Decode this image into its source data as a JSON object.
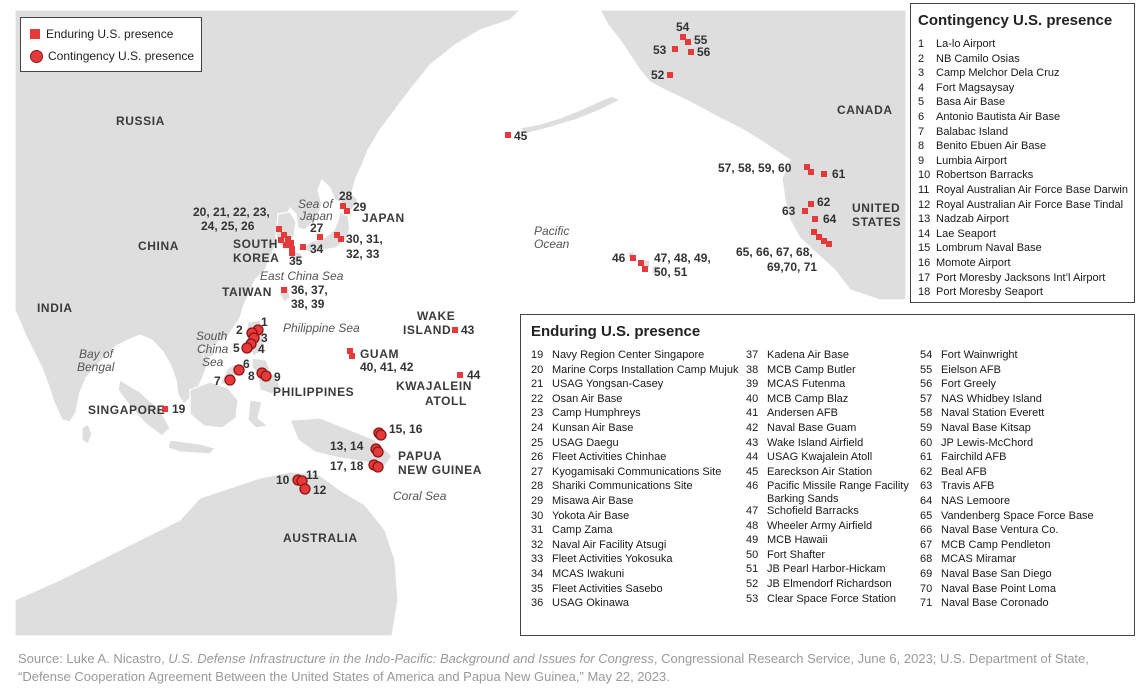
{
  "legend": {
    "enduring_label": "Enduring U.S. presence",
    "contingency_label": "Contingency U.S. presence"
  },
  "colors": {
    "marker_fill": "#e63a3a",
    "marker_stroke": "#8a1515",
    "land": "#dedede",
    "ocean": "#ffffff",
    "border": "#ffffff"
  },
  "regions": {
    "russia": "RUSSIA",
    "china": "CHINA",
    "india": "INDIA",
    "canada": "CANADA",
    "united": "UNITED",
    "states": "STATES",
    "japan": "JAPAN",
    "south": "SOUTH",
    "korea": "KOREA",
    "taiwan": "TAIWAN",
    "philippines": "PHILIPPINES",
    "singapore": "SINGAPORE",
    "australia": "AUSTRALIA",
    "papua": "PAPUA",
    "new_guinea": "NEW GUINEA",
    "wake": "WAKE",
    "island": "ISLAND",
    "guam": "GUAM",
    "kwajalein": "KWAJALEIN",
    "atoll": "ATOLL"
  },
  "water_bodies": {
    "sea_of": "Sea of",
    "japan": "Japan",
    "east_china_sea": "East China Sea",
    "pacific": "Pacific",
    "ocean": "Ocean",
    "philippine_sea": "Philippine Sea",
    "south": "South",
    "china": "China",
    "sea": "Sea",
    "bay_of": "Bay of",
    "bengal": "Bengal",
    "coral_sea": "Coral Sea"
  },
  "map_labels": {
    "n1": "1",
    "n23": "2",
    "n3": "3",
    "n4": "4",
    "n5": "5",
    "n6": "6",
    "n7": "7",
    "n8": "8",
    "n9": "9",
    "n10": "10",
    "n11": "11",
    "n12": "12",
    "n1314": "13, 14",
    "n1516": "15, 16",
    "n1718": "17, 18",
    "n19": "19",
    "k1": "20, 21, 22, 23,",
    "k2": "24, 25, 26",
    "n27": "27",
    "n28": "28",
    "n29": "29",
    "jp1": "30, 31,",
    "jp2": "32, 33",
    "n34": "34",
    "n35": "35",
    "ok1": "36, 37,",
    "ok2": "38, 39",
    "gu": "40, 41, 42",
    "n43": "43",
    "n44": "44",
    "n45": "45",
    "n46": "46",
    "hi1": "47, 48, 49,",
    "hi2": "50, 51",
    "n52": "52",
    "n53": "53",
    "n54": "54",
    "n55": "55",
    "n56": "56",
    "wa": "57, 58, 59, 60",
    "n61": "61",
    "n62": "62",
    "n63": "63",
    "n64": "64",
    "ca1": "65, 66, 67, 68,",
    "ca2": "69,70, 71"
  },
  "contingency": {
    "title": "Contingency U.S. presence",
    "items": [
      {
        "num": "1",
        "name": "La-lo Airport"
      },
      {
        "num": "2",
        "name": "NB Camilo Osias"
      },
      {
        "num": "3",
        "name": "Camp Melchor Dela Cruz"
      },
      {
        "num": "4",
        "name": "Fort Magsaysay"
      },
      {
        "num": "5",
        "name": "Basa Air Base"
      },
      {
        "num": "6",
        "name": "Antonio Bautista Air Base"
      },
      {
        "num": "7",
        "name": "Balabac Island"
      },
      {
        "num": "8",
        "name": "Benito Ebuen Air Base"
      },
      {
        "num": "9",
        "name": "Lumbia Airport"
      },
      {
        "num": "10",
        "name": "Robertson Barracks"
      },
      {
        "num": "11",
        "name": "Royal Australian Air Force Base Darwin"
      },
      {
        "num": "12",
        "name": "Royal Australian Air Force Base Tindal"
      },
      {
        "num": "13",
        "name": "Nadzab Airport"
      },
      {
        "num": "14",
        "name": "Lae Seaport"
      },
      {
        "num": "15",
        "name": "Lombrum Naval Base"
      },
      {
        "num": "16",
        "name": "Momote Airport"
      },
      {
        "num": "17",
        "name": "Port Moresby Jacksons Int’l Airport"
      },
      {
        "num": "18",
        "name": "Port Moresby Seaport"
      }
    ]
  },
  "enduring": {
    "title": "Enduring U.S. presence",
    "col1": [
      {
        "num": "19",
        "name": "Navy Region Center Singapore"
      },
      {
        "num": "20",
        "name": "Marine Corps Installation Camp Mujuk"
      },
      {
        "num": "21",
        "name": "USAG Yongsan-Casey"
      },
      {
        "num": "22",
        "name": "Osan Air Base"
      },
      {
        "num": "23",
        "name": "Camp Humphreys"
      },
      {
        "num": "24",
        "name": "Kunsan Air Base"
      },
      {
        "num": "25",
        "name": "USAG Daegu"
      },
      {
        "num": "26",
        "name": "Fleet Activities Chinhae"
      },
      {
        "num": "27",
        "name": "Kyogamisaki Communications Site"
      },
      {
        "num": "28",
        "name": "Shariki Communications Site"
      },
      {
        "num": "29",
        "name": "Misawa Air Base"
      },
      {
        "num": "30",
        "name": "Yokota Air Base"
      },
      {
        "num": "31",
        "name": "Camp Zama"
      },
      {
        "num": "32",
        "name": "Naval Air Facility Atsugi"
      },
      {
        "num": "33",
        "name": "Fleet Activities Yokosuka"
      },
      {
        "num": "34",
        "name": "MCAS Iwakuni"
      },
      {
        "num": "35",
        "name": "Fleet Activities Sasebo"
      },
      {
        "num": "36",
        "name": "USAG Okinawa"
      }
    ],
    "col2": [
      {
        "num": "37",
        "name": "Kadena Air Base"
      },
      {
        "num": "38",
        "name": "MCB Camp Butler"
      },
      {
        "num": "39",
        "name": "MCAS Futenma"
      },
      {
        "num": "40",
        "name": "MCB Camp Blaz"
      },
      {
        "num": "41",
        "name": "Andersen AFB"
      },
      {
        "num": "42",
        "name": "Naval Base Guam"
      },
      {
        "num": "43",
        "name": "Wake Island Airfield"
      },
      {
        "num": "44",
        "name": "USAG Kwajalein Atoll"
      },
      {
        "num": "45",
        "name": "Eareckson Air Station"
      },
      {
        "num": "46",
        "name": "Pacific Missile Range Facility",
        "name2": "Barking Sands"
      },
      {
        "num": "47",
        "name": "Schofield Barracks"
      },
      {
        "num": "48",
        "name": "Wheeler Army Airfield"
      },
      {
        "num": "49",
        "name": "MCB Hawaii"
      },
      {
        "num": "50",
        "name": "Fort Shafter"
      },
      {
        "num": "51",
        "name": "JB Pearl Harbor-Hickam"
      },
      {
        "num": "52",
        "name": "JB Elmendorf Richardson"
      },
      {
        "num": "53",
        "name": "Clear Space Force Station"
      }
    ],
    "col3": [
      {
        "num": "54",
        "name": "Fort Wainwright"
      },
      {
        "num": "55",
        "name": "Eielson AFB"
      },
      {
        "num": "56",
        "name": "Fort Greely"
      },
      {
        "num": "57",
        "name": "NAS Whidbey Island"
      },
      {
        "num": "58",
        "name": "Naval Station Everett"
      },
      {
        "num": "59",
        "name": "Naval Base Kitsap"
      },
      {
        "num": "60",
        "name": "JP Lewis-McChord"
      },
      {
        "num": "61",
        "name": "Fairchild AFB"
      },
      {
        "num": "62",
        "name": "Beal AFB"
      },
      {
        "num": "63",
        "name": "Travis AFB"
      },
      {
        "num": "64",
        "name": "NAS Lemoore"
      },
      {
        "num": "65",
        "name": "Vandenberg Space Force Base"
      },
      {
        "num": "66",
        "name": "Naval Base Ventura Co."
      },
      {
        "num": "67",
        "name": "MCB Camp Pendleton"
      },
      {
        "num": "68",
        "name": "MCAS Miramar"
      },
      {
        "num": "69",
        "name": "Naval Base San Diego"
      },
      {
        "num": "70",
        "name": "Naval Base Point Loma"
      },
      {
        "num": "71",
        "name": "Naval Base Coronado"
      }
    ]
  },
  "source": {
    "prefix": "Source: Luke A. Nicastro, ",
    "title_italic": "U.S. Defense Infrastructure in the Indo-Pacific: Background and Issues for Congress",
    "suffix": ", Congressional Research Service, June 6, 2023; U.S. Department of State, “Defense Cooperation Agreement Between the United States of America and Papua New Guinea,” May 22, 2023."
  }
}
